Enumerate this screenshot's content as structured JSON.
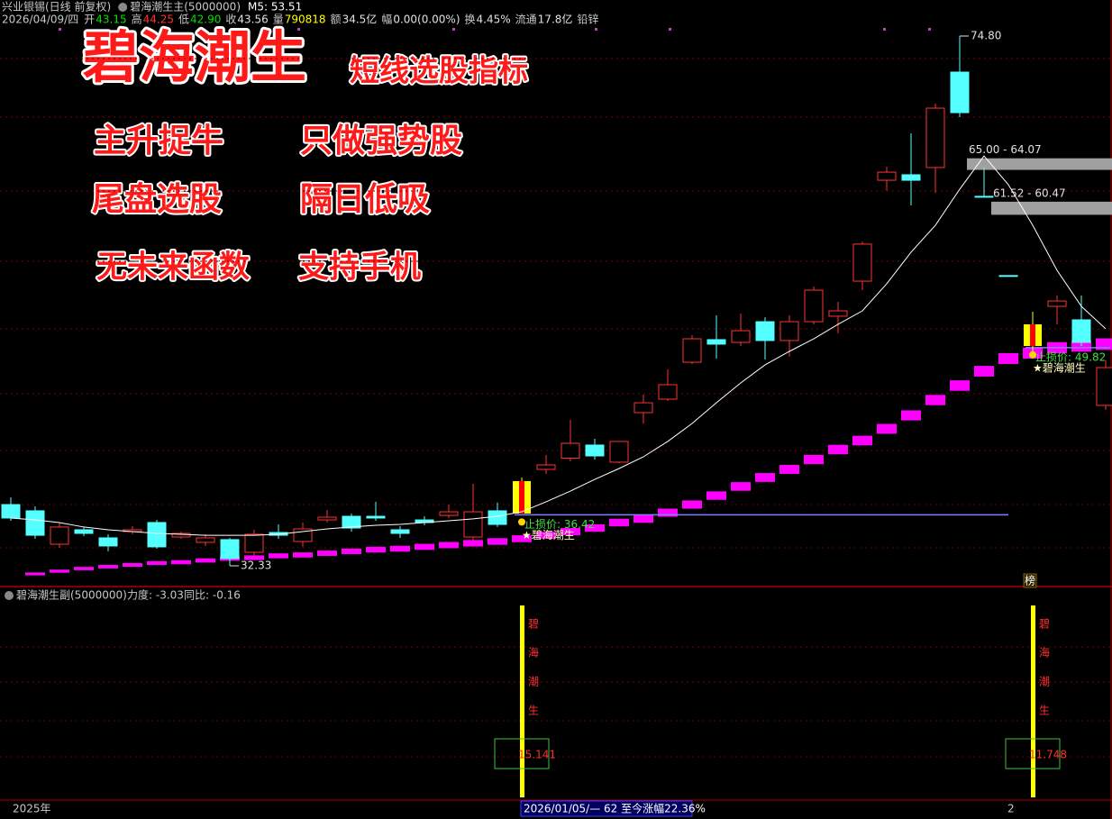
{
  "header": {
    "line1": [
      {
        "text": "兴业银锡(日线 前复权)",
        "color": "#c8c8c8"
      },
      {
        "text": "碧海潮生主(5000000)",
        "color": "#c8c8c8"
      },
      {
        "text": "M5: 53.51",
        "color": "#ffffff"
      }
    ],
    "info": [
      {
        "label": "2026/04/09/四"
      },
      {
        "label": "开",
        "value": "43.15",
        "color": "#00e000"
      },
      {
        "label": "高",
        "value": "44.25",
        "color": "#ff3232"
      },
      {
        "label": "低",
        "value": "42.90",
        "color": "#00e000"
      },
      {
        "label": "收",
        "value": "43.56",
        "color": "#e0e0e0"
      },
      {
        "label": "量",
        "value": "790818",
        "color": "#ffff00"
      },
      {
        "label": "额",
        "value": "34.5亿",
        "color": "#e0e0e0"
      },
      {
        "label": "幅",
        "value": "0.00(0.00%)",
        "color": "#e0e0e0"
      },
      {
        "label": "换",
        "value": "4.45%",
        "color": "#e0e0e0"
      },
      {
        "label": "流通",
        "value": "17.8亿",
        "color": "#e0e0e0"
      },
      {
        "label": "铅锌"
      }
    ]
  },
  "overlay": {
    "title": "碧海潮生",
    "subtitle": "短线选股指标",
    "lines": [
      [
        "主升捉牛",
        "只做强势股"
      ],
      [
        "尾盘选股",
        "隔日低吸"
      ],
      [
        "无未来函数",
        "支持手机"
      ]
    ]
  },
  "chart_data": {
    "type": "candlestick",
    "ylim": [
      30.74,
      77.69
    ],
    "up_color": "#ff3232",
    "down_color": "#54ffff",
    "ma_color": "#ffffff",
    "support_color": "#ff00ff",
    "signal_colors": [
      "#ffff00",
      "#ff0000"
    ],
    "stop_color": "#8080ff",
    "zone_color": "#a0a0a0",
    "open": [
      37.24,
      36.74,
      34.06,
      35.22,
      34.57,
      35.07,
      35.8,
      34.64,
      34.21,
      34.43,
      33.41,
      35.0,
      34.28,
      36.01,
      36.3,
      36.3,
      35.22,
      36.01,
      36.37,
      34.64,
      36.74,
      36.52,
      40.06,
      40.96,
      42.01,
      40.64,
      44.61,
      45.69,
      48.65,
      50.46,
      50.24,
      51.9,
      50.39,
      51.9,
      52.34,
      55.15,
      63.24,
      63.68,
      64.26,
      71.91,
      61.95,
      55.6,
      49.95,
      53.13,
      52.05,
      45.19
    ],
    "high": [
      37.82,
      37.1,
      35.8,
      35.44,
      34.86,
      35.51,
      36.01,
      35.07,
      34.86,
      34.57,
      35.22,
      35.65,
      35.8,
      36.81,
      36.52,
      37.46,
      35.51,
      36.3,
      37.24,
      38.9,
      37.39,
      39.41,
      41.21,
      44.03,
      42.51,
      42.3,
      46.05,
      48.08,
      50.82,
      52.41,
      52.55,
      52.26,
      52.41,
      54.72,
      53.49,
      58.33,
      64.33,
      67.0,
      69.38,
      74.8,
      64.26,
      55.6,
      52.7,
      54.0,
      54.0,
      48.8
    ],
    "low": [
      35.94,
      34.5,
      33.77,
      34.71,
      33.49,
      34.86,
      33.7,
      34.5,
      33.92,
      32.33,
      33.12,
      34.5,
      33.85,
      35.8,
      35.07,
      35.94,
      34.57,
      35.58,
      36.16,
      34.35,
      35.44,
      36.52,
      39.7,
      40.71,
      40.85,
      40.56,
      43.74,
      45.55,
      48.51,
      48.94,
      49.95,
      48.87,
      49.09,
      51.69,
      50.97,
      54.43,
      62.41,
      61.22,
      62.23,
      68.3,
      61.94,
      55.59,
      49.52,
      51.69,
      49.95,
      44.83
    ],
    "close": [
      36.16,
      34.78,
      35.44,
      34.93,
      33.92,
      35.22,
      33.85,
      34.93,
      34.57,
      32.91,
      34.86,
      34.78,
      35.29,
      36.23,
      35.36,
      36.16,
      34.93,
      35.8,
      36.66,
      36.66,
      35.65,
      39.12,
      40.42,
      42.15,
      41.14,
      42.3,
      45.4,
      46.85,
      50.53,
      50.1,
      51.18,
      50.39,
      51.9,
      54.43,
      52.77,
      58.12,
      63.89,
      63.24,
      69.02,
      68.66,
      61.94,
      55.59,
      51.69,
      53.56,
      50.24,
      48.22
    ],
    "ma5": [
      36.16,
      36.01,
      35.8,
      35.44,
      35.22,
      35.07,
      34.93,
      34.86,
      34.78,
      34.78,
      34.78,
      34.86,
      35.07,
      35.29,
      35.44,
      35.58,
      35.65,
      35.8,
      35.94,
      36.09,
      36.3,
      36.66,
      37.46,
      38.32,
      39.26,
      40.13,
      41.07,
      42.3,
      43.74,
      45.4,
      46.99,
      48.44,
      49.52,
      50.53,
      51.69,
      52.77,
      54.94,
      57.47,
      59.63,
      62.52,
      65.19,
      62.88,
      59.63,
      56.02,
      53.13,
      51.33
    ],
    "support": [
      null,
      31.68,
      31.9,
      32.11,
      32.26,
      32.4,
      32.55,
      32.62,
      32.76,
      32.91,
      32.98,
      33.13,
      33.2,
      33.34,
      33.49,
      33.63,
      33.7,
      33.85,
      33.99,
      34.14,
      34.28,
      34.5,
      34.78,
      35.07,
      35.36,
      35.8,
      36.09,
      36.59,
      37.24,
      37.96,
      38.69,
      39.41,
      40.06,
      40.85,
      41.65,
      42.37,
      43.31,
      44.39,
      45.62,
      46.78,
      47.93,
      48.94,
      49.38,
      49.81,
      49.95,
      50.1
    ],
    "price_labels": [
      {
        "index": 39,
        "value": 74.8,
        "label": "74.80"
      },
      {
        "index": 9,
        "value": 32.33,
        "label": "32.33"
      }
    ],
    "zones": [
      {
        "start": 40,
        "high": 65.0,
        "low": 64.07,
        "label": "65.00 - 64.07"
      },
      {
        "start": 41,
        "high": 61.52,
        "low": 60.47,
        "label": "61.52 - 60.47"
      }
    ],
    "signals": [
      {
        "index": 21,
        "stop": 36.42,
        "stop_label": "止损价: 36.42",
        "stop_end": 41,
        "label": "★碧海潮生",
        "strength": 15.141
      },
      {
        "index": 42,
        "stop": 49.82,
        "stop_label": "止损价: 49.82",
        "label": "★碧海潮生",
        "strength": 11.748
      }
    ],
    "rank_tag": "榜"
  },
  "sub_panel": {
    "title": "碧海潮生副(5000000)",
    "force": "力度: -3.03",
    "yoy": "同比: -0.16",
    "bar_text": [
      "碧",
      "海",
      "潮",
      "生"
    ]
  },
  "footer": {
    "year": "2025年",
    "period": "2026/01/05/— 62 至今涨幅22.36%",
    "page": "2"
  }
}
